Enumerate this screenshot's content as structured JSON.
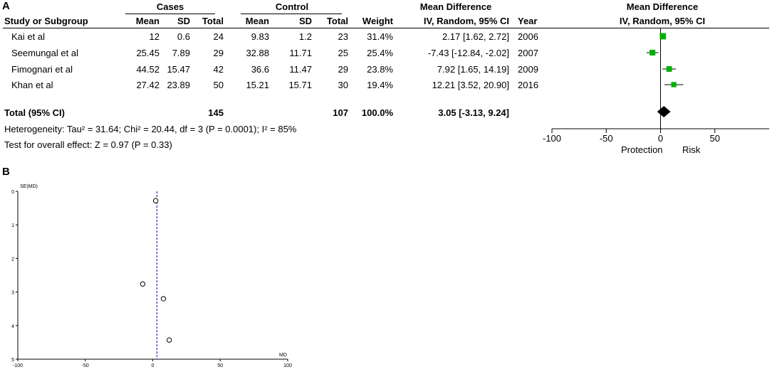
{
  "panelA": {
    "label": "A",
    "group_headers": {
      "cases": "Cases",
      "control": "Control",
      "md": "Mean Difference",
      "plot": "Mean Difference"
    },
    "col_headers": {
      "study": "Study or Subgroup",
      "c_mean": "Mean",
      "c_sd": "SD",
      "c_total": "Total",
      "k_mean": "Mean",
      "k_sd": "SD",
      "k_total": "Total",
      "weight": "Weight",
      "md": "IV, Random, 95% CI",
      "year": "Year",
      "plot": "IV, Random, 95% CI"
    },
    "rows": [
      {
        "study": "Kai et al",
        "c_mean": "12",
        "c_sd": "0.6",
        "c_total": "24",
        "k_mean": "9.83",
        "k_sd": "1.2",
        "k_total": "23",
        "weight": "31.4%",
        "md": "2.17 [1.62, 2.72]",
        "year": "2006"
      },
      {
        "study": "Seemungal et al",
        "c_mean": "25.45",
        "c_sd": "7.89",
        "c_total": "29",
        "k_mean": "32.88",
        "k_sd": "11.71",
        "k_total": "25",
        "weight": "25.4%",
        "md": "-7.43 [-12.84, -2.02]",
        "year": "2007"
      },
      {
        "study": "Fimognari et al",
        "c_mean": "44.52",
        "c_sd": "15.47",
        "c_total": "42",
        "k_mean": "36.6",
        "k_sd": "11.47",
        "k_total": "29",
        "weight": "23.8%",
        "md": "7.92 [1.65, 14.19]",
        "year": "2009"
      },
      {
        "study": "Khan et al",
        "c_mean": "27.42",
        "c_sd": "23.89",
        "c_total": "50",
        "k_mean": "15.21",
        "k_sd": "15.71",
        "k_total": "30",
        "weight": "19.4%",
        "md": "12.21 [3.52, 20.90]",
        "year": "2016"
      }
    ],
    "total": {
      "label": "Total (95% CI)",
      "c_total": "145",
      "k_total": "107",
      "weight": "100.0%",
      "md": "3.05 [-3.13, 9.24]"
    },
    "heterogeneity": "Heterogeneity: Tau² = 31.64; Chi² = 20.44, df = 3 (P = 0.0001); I² = 85%",
    "overall": "Test for overall effect: Z = 0.97 (P = 0.33)",
    "favours_left": "Protection",
    "favours_right": "Risk"
  },
  "panelB": {
    "label": "B",
    "ylabel": "SE(MD)",
    "xlabel": "MD"
  },
  "chart_data": [
    {
      "type": "scatter",
      "subtype": "forest-plot",
      "x_axis": {
        "range": [
          -100,
          100
        ],
        "ticks": [
          -100,
          -50,
          0,
          50
        ],
        "tick_labels": [
          "-100",
          "-50",
          "0",
          "50"
        ]
      },
      "square_color": "#00b000",
      "studies": [
        {
          "name": "Kai et al",
          "md": 2.17,
          "lo": 1.62,
          "hi": 2.72,
          "weight": 31.4
        },
        {
          "name": "Seemungal et al",
          "md": -7.43,
          "lo": -12.84,
          "hi": -2.02,
          "weight": 25.4
        },
        {
          "name": "Fimognari et al",
          "md": 7.92,
          "lo": 1.65,
          "hi": 14.19,
          "weight": 23.8
        },
        {
          "name": "Khan et al",
          "md": 12.21,
          "lo": 3.52,
          "hi": 20.9,
          "weight": 19.4
        }
      ],
      "pooled": {
        "md": 3.05,
        "lo": -3.13,
        "hi": 9.24
      }
    },
    {
      "type": "scatter",
      "subtype": "funnel-plot",
      "xlabel": "MD",
      "ylabel": "SE(MD)",
      "x_axis": {
        "range": [
          -100,
          100
        ],
        "ticks": [
          -100,
          -50,
          0,
          50,
          100
        ],
        "tick_labels": [
          "-100",
          "-50",
          "0",
          "50",
          "100"
        ]
      },
      "y_axis": {
        "range": [
          0,
          5
        ],
        "reversed": true,
        "ticks": [
          0,
          1,
          2,
          3,
          4,
          5
        ],
        "tick_labels": [
          "0",
          "1",
          "2",
          "3",
          "4",
          "5"
        ]
      },
      "reference_line_x": 3.05,
      "reference_line_color": "#0000cc",
      "points": [
        {
          "x": 2.17,
          "y": 0.28
        },
        {
          "x": -7.43,
          "y": 2.76
        },
        {
          "x": 7.92,
          "y": 3.2
        },
        {
          "x": 12.21,
          "y": 4.43
        }
      ]
    }
  ]
}
